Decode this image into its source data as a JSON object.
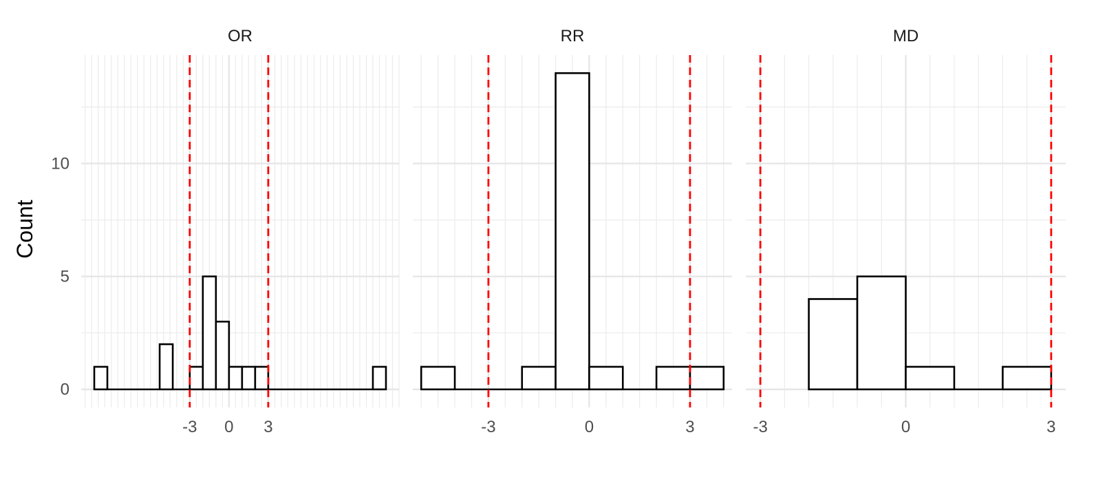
{
  "chart_data": {
    "type": "histogram",
    "facet_layout": "1 row, 3 columns, shared y axis",
    "y_axis": {
      "label": "Count",
      "ticks": [
        0,
        5,
        10
      ],
      "minor_ticks": [
        2.5,
        7.5,
        12.5
      ],
      "lim": [
        -0.8,
        14.8
      ],
      "grid": true
    },
    "reference_lines": {
      "values": [
        -3,
        3
      ],
      "color": "#ff0000",
      "style": "dashed"
    },
    "bar_style": {
      "fill": "#ffffff",
      "stroke": "#000000"
    },
    "panels": [
      {
        "title": "OR",
        "xlim": [
          -11.3,
          13
        ],
        "x_ticks": [
          -3,
          0,
          3
        ],
        "x_tick_labels": [
          "-3",
          "0",
          "3"
        ],
        "minor_grid_spacing": 0.5,
        "bins": [
          {
            "x0": -10.3,
            "x1": -9.3,
            "count": 1
          },
          {
            "x0": -5.3,
            "x1": -4.3,
            "count": 2
          },
          {
            "x0": -3.0,
            "x1": -2.0,
            "count": 1
          },
          {
            "x0": -2.0,
            "x1": -1.0,
            "count": 5
          },
          {
            "x0": -1.0,
            "x1": 0.0,
            "count": 3
          },
          {
            "x0": 0.0,
            "x1": 1.0,
            "count": 1
          },
          {
            "x0": 1.0,
            "x1": 2.0,
            "count": 1
          },
          {
            "x0": 2.0,
            "x1": 3.0,
            "count": 1
          },
          {
            "x0": 11.0,
            "x1": 12.0,
            "count": 1
          }
        ]
      },
      {
        "title": "RR",
        "xlim": [
          -5.25,
          4.25
        ],
        "x_ticks": [
          -3,
          0,
          3
        ],
        "x_tick_labels": [
          "-3",
          "0",
          "3"
        ],
        "minor_grid_spacing": 0.5,
        "bins": [
          {
            "x0": -5,
            "x1": -4,
            "count": 1
          },
          {
            "x0": -2,
            "x1": -1,
            "count": 1
          },
          {
            "x0": -1,
            "x1": 0,
            "count": 14
          },
          {
            "x0": 0,
            "x1": 1,
            "count": 1
          },
          {
            "x0": 2,
            "x1": 3,
            "count": 1
          },
          {
            "x0": 3,
            "x1": 4,
            "count": 1
          }
        ]
      },
      {
        "title": "MD",
        "xlim": [
          -3.3,
          3.3
        ],
        "x_ticks": [
          -3,
          0,
          3
        ],
        "x_tick_labels": [
          "-3",
          "0",
          "3"
        ],
        "minor_grid_spacing": 0.5,
        "bins": [
          {
            "x0": -2,
            "x1": -1,
            "count": 4
          },
          {
            "x0": -1,
            "x1": 0,
            "count": 5
          },
          {
            "x0": 0,
            "x1": 1,
            "count": 1
          },
          {
            "x0": 2,
            "x1": 3,
            "count": 1
          }
        ]
      }
    ]
  }
}
